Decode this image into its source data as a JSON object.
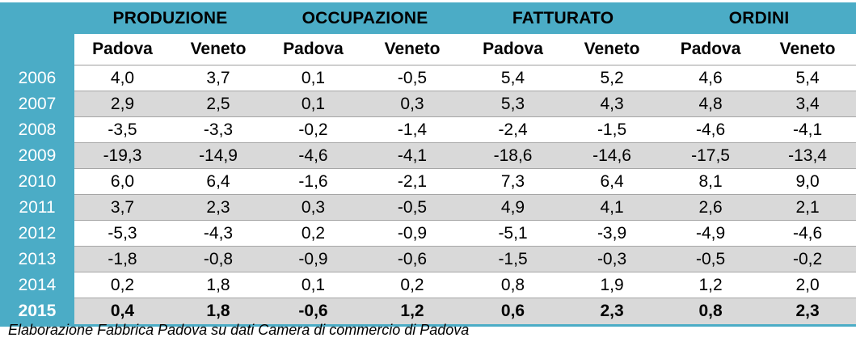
{
  "groups": [
    "PRODUZIONE",
    "OCCUPAZIONE",
    "FATTURATO",
    "ORDINI"
  ],
  "subheaders": [
    "Padova",
    "Veneto",
    "Padova",
    "Veneto",
    "Padova",
    "Veneto",
    "Padova",
    "Veneto"
  ],
  "rows": [
    {
      "year": "2006",
      "values": [
        "4,0",
        "3,7",
        "0,1",
        "-0,5",
        "5,4",
        "5,2",
        "4,6",
        "5,4"
      ]
    },
    {
      "year": "2007",
      "values": [
        "2,9",
        "2,5",
        "0,1",
        "0,3",
        "5,3",
        "4,3",
        "4,8",
        "3,4"
      ]
    },
    {
      "year": "2008",
      "values": [
        "-3,5",
        "-3,3",
        "-0,2",
        "-1,4",
        "-2,4",
        "-1,5",
        "-4,6",
        "-4,1"
      ]
    },
    {
      "year": "2009",
      "values": [
        "-19,3",
        "-14,9",
        "-4,6",
        "-4,1",
        "-18,6",
        "-14,6",
        "-17,5",
        "-13,4"
      ]
    },
    {
      "year": "2010",
      "values": [
        "6,0",
        "6,4",
        "-1,6",
        "-2,1",
        "7,3",
        "6,4",
        "8,1",
        "9,0"
      ]
    },
    {
      "year": "2011",
      "values": [
        "3,7",
        "2,3",
        "0,3",
        "-0,5",
        "4,9",
        "4,1",
        "2,6",
        "2,1"
      ]
    },
    {
      "year": "2012",
      "values": [
        "-5,3",
        "-4,3",
        "0,2",
        "-0,9",
        "-5,1",
        "-3,9",
        "-4,9",
        "-4,6"
      ]
    },
    {
      "year": "2013",
      "values": [
        "-1,8",
        "-0,8",
        "-0,9",
        "-0,6",
        "-1,5",
        "-0,3",
        "-0,5",
        "-0,2"
      ]
    },
    {
      "year": "2014",
      "values": [
        "0,2",
        "1,8",
        "0,1",
        "0,2",
        "0,8",
        "1,9",
        "1,2",
        "2,0"
      ]
    },
    {
      "year": "2015",
      "values": [
        "0,4",
        "1,8",
        "-0,6",
        "1,2",
        "0,6",
        "2,3",
        "0,8",
        "2,3"
      ]
    }
  ],
  "source": "Elaborazione Fabbrica Padova su dati Camera di commercio di Padova",
  "colors": {
    "header_bg": "#4bacc6",
    "row_shade": "#d9d9d9"
  }
}
